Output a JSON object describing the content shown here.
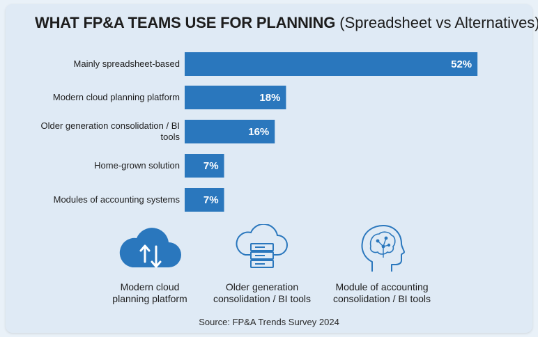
{
  "title": {
    "main": "WHAT FP&A TEAMS USE FOR PLANNING",
    "sub": "(Spreadsheet vs Alternatives)"
  },
  "chart_data": {
    "type": "bar",
    "orientation": "horizontal",
    "categories": [
      "Mainly spreadsheet-based",
      "Modern cloud planning platform",
      "Older generation consolidation / BI tools",
      "Home-grown solution",
      "Modules of accounting systems"
    ],
    "values": [
      52,
      18,
      16,
      7,
      7
    ],
    "data_labels": [
      "52%",
      "18%",
      "16%",
      "7%",
      "7%"
    ],
    "bar_color": "#2a77bd",
    "grid": false,
    "legend": "none"
  },
  "icons": [
    {
      "name": "cloud-sync-icon",
      "caption_line1": "Modern cloud",
      "caption_line2": "planning platform"
    },
    {
      "name": "cloud-server-icon",
      "caption_line1": "Older generation",
      "caption_line2": "consolidation / BI tools"
    },
    {
      "name": "brain-head-icon",
      "caption_line1": "Module of accounting",
      "caption_line2": "consolidation / BI tools"
    }
  ],
  "source": "Source: FP&A Trends Survey 2024",
  "colors": {
    "accent": "#2a77bd",
    "background": "#dfeaf5",
    "text": "#1e1e1e"
  }
}
